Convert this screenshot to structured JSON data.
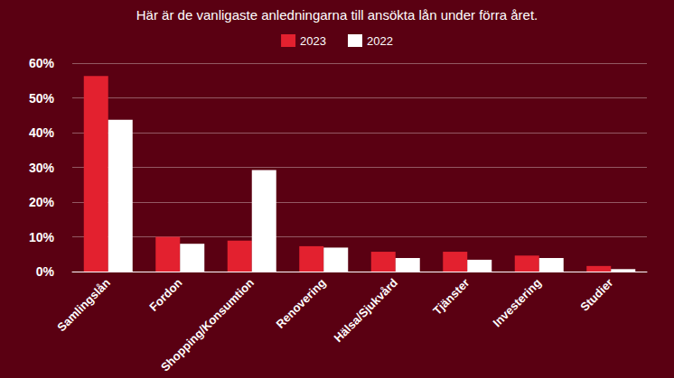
{
  "chart_data": {
    "type": "bar",
    "title": "Här är de vanligaste anledningarna till ansökta lån under förra året.",
    "categories": [
      "Samlingslån",
      "Fordon",
      "Shopping/Konsumtion",
      "Renovering",
      "Hälsa/Sjukvård",
      "Tjänster",
      "Investering",
      "Studier"
    ],
    "series": [
      {
        "name": "2023",
        "color": "#e3212f",
        "values": [
          56.3,
          10.0,
          8.9,
          7.3,
          5.7,
          5.7,
          4.6,
          1.6
        ]
      },
      {
        "name": "2022",
        "color": "#ffffff",
        "values": [
          43.7,
          8.0,
          29.2,
          6.9,
          3.9,
          3.4,
          3.9,
          0.7
        ]
      }
    ],
    "ylim": [
      0,
      60
    ],
    "yticks": [
      {
        "value": 0,
        "label": "0%"
      },
      {
        "value": 10,
        "label": "10%"
      },
      {
        "value": 20,
        "label": "20%"
      },
      {
        "value": 30,
        "label": "30%"
      },
      {
        "value": 40,
        "label": "40%"
      },
      {
        "value": 50,
        "label": "50%"
      },
      {
        "value": 60,
        "label": "60%"
      }
    ],
    "grid": true,
    "legend": "top"
  }
}
